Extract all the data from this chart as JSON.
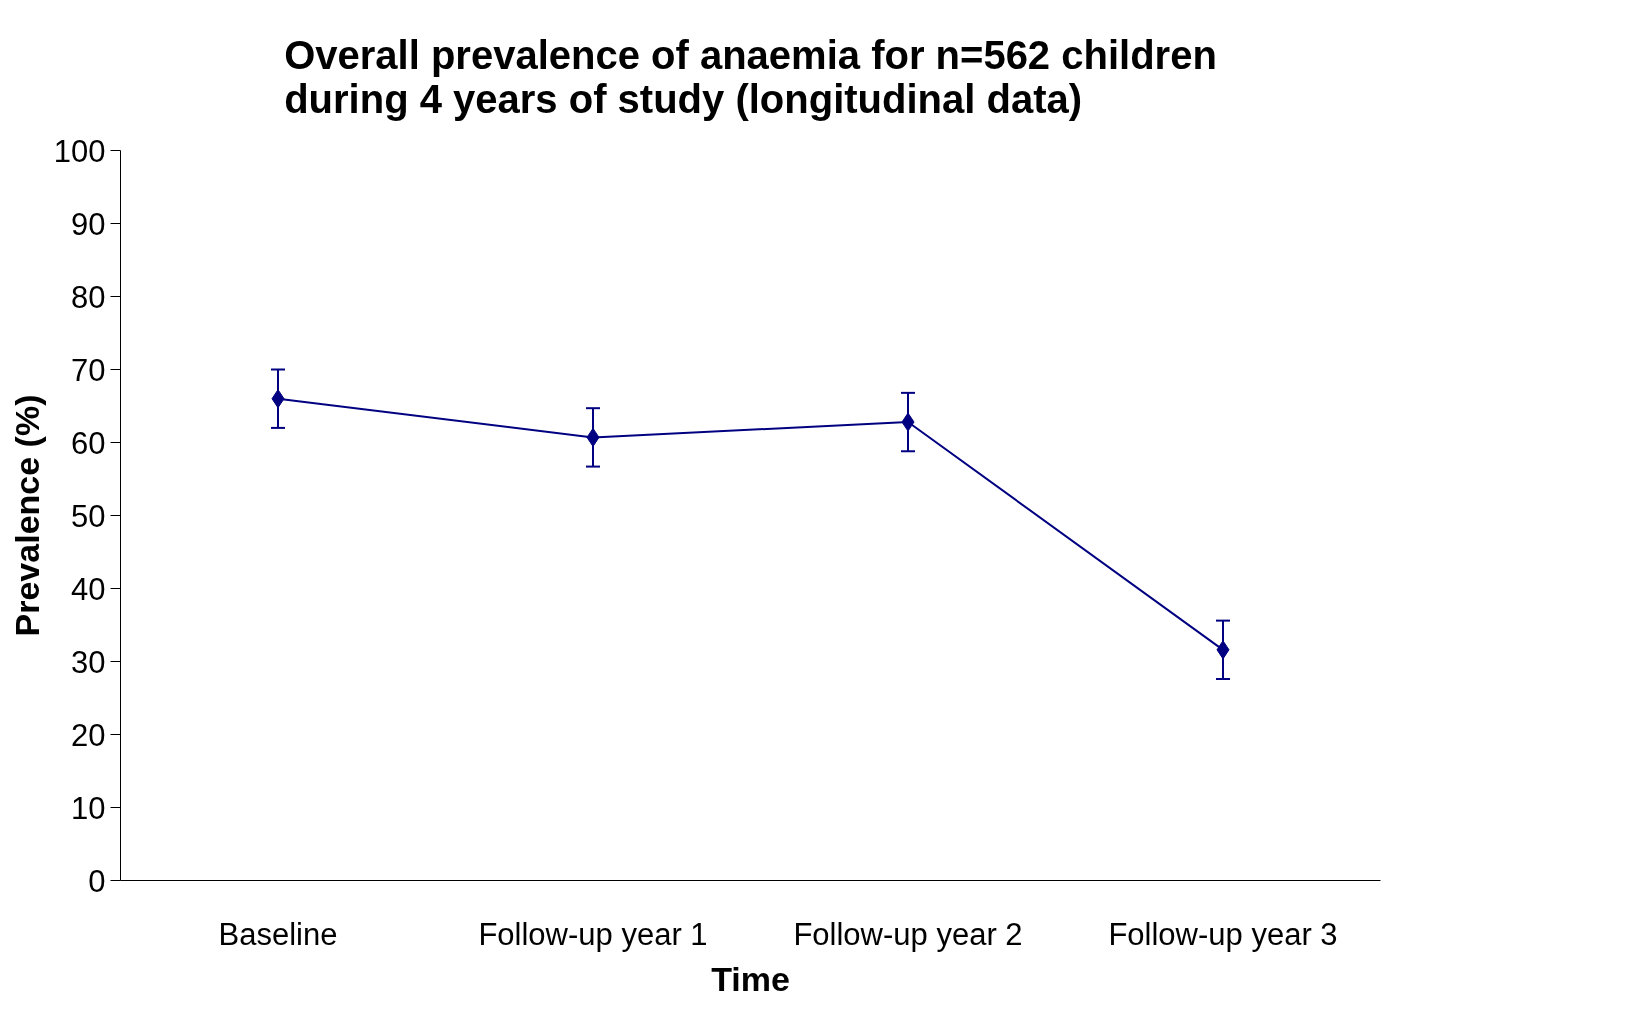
{
  "chart_data": {
    "type": "line",
    "title": "Overall prevalence of anaemia for n=562 children\nduring 4 years of study (longitudinal data)",
    "xlabel": "Time",
    "ylabel": "Prevalence (%)",
    "categories": [
      "Baseline",
      "Follow-up year 1",
      "Follow-up year 2",
      "Follow-up year 3"
    ],
    "series": [
      {
        "color": "#000080",
        "values": [
          66,
          60.7,
          62.8,
          31.6
        ],
        "errors": [
          4,
          4,
          4,
          4
        ]
      }
    ],
    "ylim": [
      0,
      100
    ],
    "yticks": [
      0,
      10,
      20,
      30,
      40,
      50,
      60,
      70,
      80,
      90,
      100
    ],
    "grid": false,
    "marker": "diamond",
    "line_style": "solid"
  }
}
